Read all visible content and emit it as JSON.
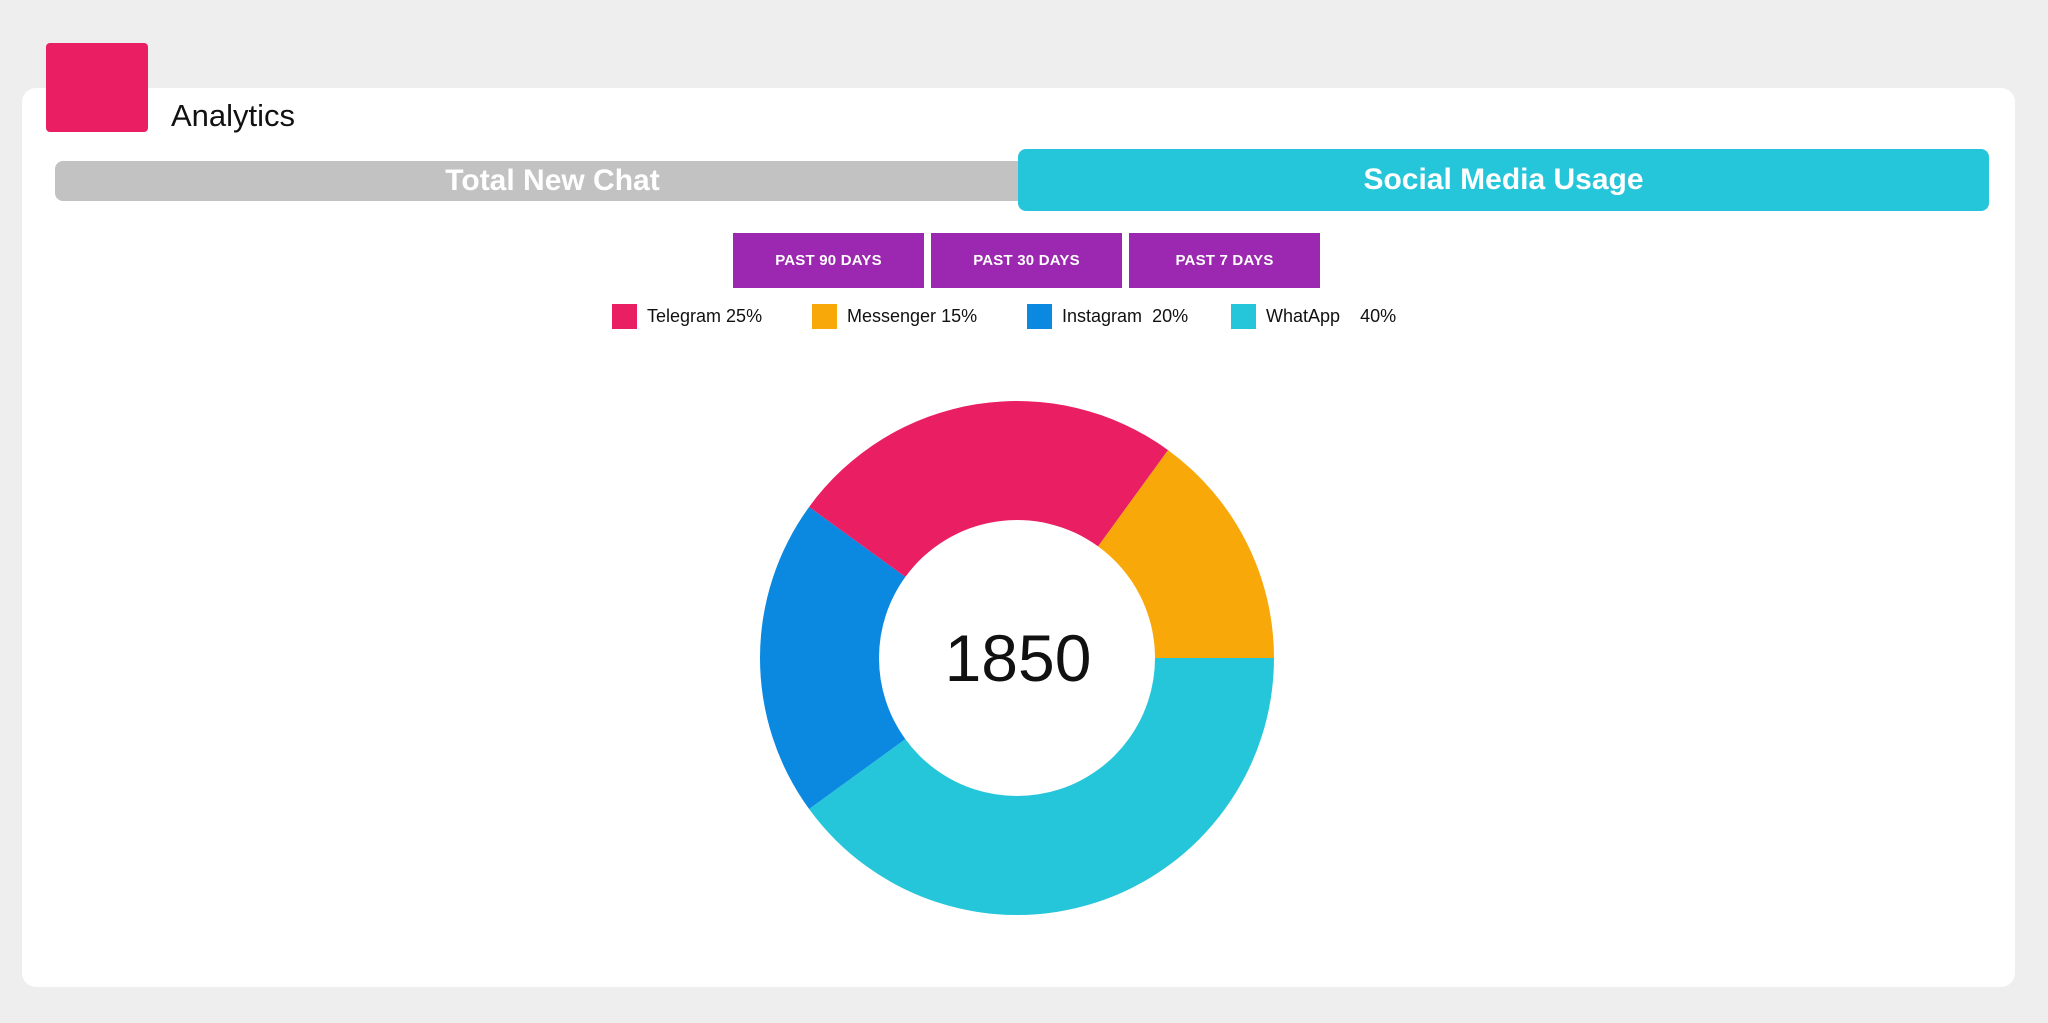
{
  "header": {
    "title": "Analytics"
  },
  "tabs": [
    {
      "label": "Total New Chat",
      "active": false
    },
    {
      "label": "Social Media Usage",
      "active": true
    }
  ],
  "ranges": [
    "PAST 90 DAYS",
    "PAST 30 DAYS",
    "PAST 7 DAYS"
  ],
  "colors": {
    "accent": "#e91e63",
    "tab_active": "#26c6da",
    "tab_inactive": "#c2c2c2",
    "range_button": "#9c27b0"
  },
  "legend": [
    {
      "name": "Telegram",
      "pct": "25%",
      "sep": " ",
      "color": "#e91e63"
    },
    {
      "name": "Messenger",
      "pct": "15%",
      "sep": " ",
      "color": "#f9a80a"
    },
    {
      "name": "Instagram",
      "pct": "20%",
      "sep": "  ",
      "color": "#0b89e0"
    },
    {
      "name": "WhatApp",
      "pct": "40%",
      "sep": "    ",
      "color": "#26c6da"
    }
  ],
  "chart_data": {
    "type": "pie",
    "donut": true,
    "center_label": "1850",
    "categories": [
      "WhatApp",
      "Instagram",
      "Telegram",
      "Messenger"
    ],
    "values": [
      40,
      20,
      25,
      15
    ],
    "colors": [
      "#26c6da",
      "#0b89e0",
      "#e91e63",
      "#f9a80a"
    ],
    "start": "3 o'clock",
    "direction": "clockwise"
  }
}
